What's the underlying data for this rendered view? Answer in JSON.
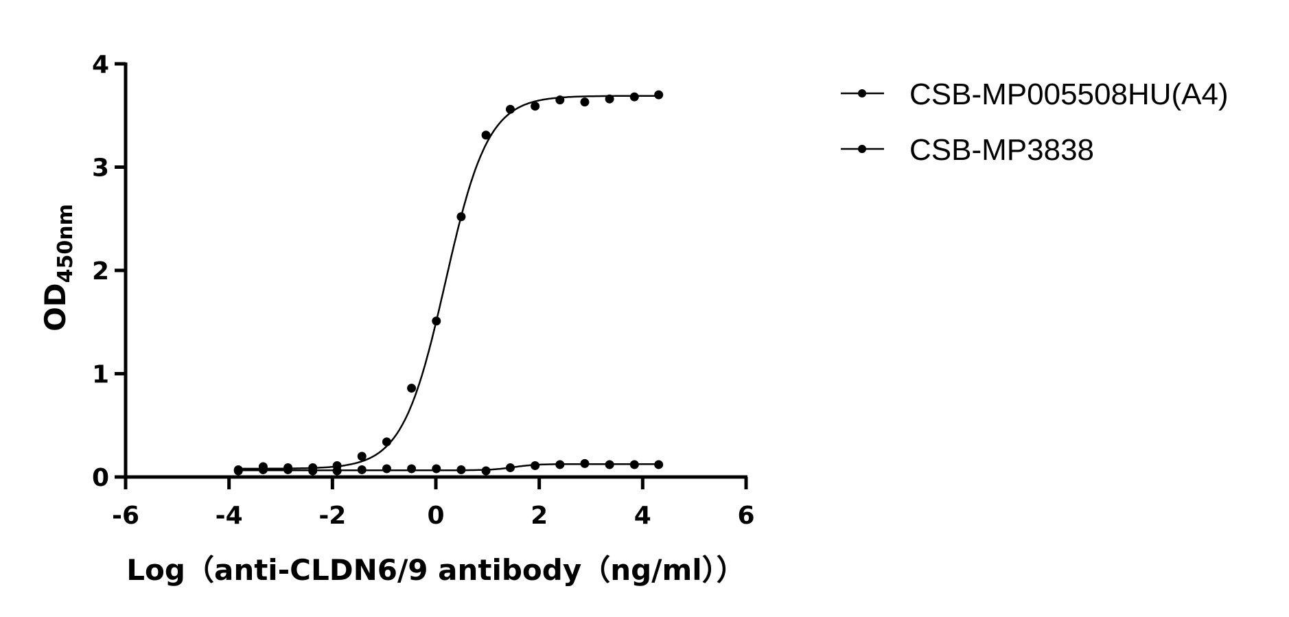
{
  "chart_data": {
    "type": "scatter",
    "title": "",
    "xlabel": "Log（anti-CLDN6/9 antibody（ng/ml））",
    "ylabel_main": "OD",
    "ylabel_sub": "450nm",
    "xlim": [
      -6,
      6
    ],
    "ylim": [
      0,
      4
    ],
    "xticks": [
      "-6",
      "-4",
      "-2",
      "0",
      "2",
      "4",
      "6"
    ],
    "yticks": [
      "0",
      "1",
      "2",
      "3",
      "4"
    ],
    "grid": false,
    "legend_position": "top-right",
    "series": [
      {
        "name": "CSB-MP005508HU(A4)",
        "color": "#000000",
        "x": [
          -3.82,
          -3.34,
          -2.86,
          -2.38,
          -1.91,
          -1.43,
          -0.95,
          -0.47,
          0.01,
          0.49,
          0.97,
          1.44,
          1.92,
          2.4,
          2.88,
          3.36,
          3.84,
          4.31
        ],
        "y": [
          0.07,
          0.1,
          0.09,
          0.09,
          0.11,
          0.2,
          0.34,
          0.86,
          1.51,
          2.52,
          3.31,
          3.56,
          3.59,
          3.65,
          3.63,
          3.66,
          3.68,
          3.7
        ]
      },
      {
        "name": "CSB-MP3838",
        "color": "#000000",
        "x": [
          -3.82,
          -3.34,
          -2.86,
          -2.38,
          -1.91,
          -1.43,
          -0.95,
          -0.47,
          0.01,
          0.49,
          0.97,
          1.44,
          1.92,
          2.4,
          2.88,
          3.36,
          3.84,
          4.31
        ],
        "y": [
          0.06,
          0.07,
          0.07,
          0.06,
          0.06,
          0.07,
          0.08,
          0.08,
          0.08,
          0.07,
          0.06,
          0.09,
          0.11,
          0.12,
          0.13,
          0.12,
          0.12,
          0.12
        ]
      }
    ]
  }
}
